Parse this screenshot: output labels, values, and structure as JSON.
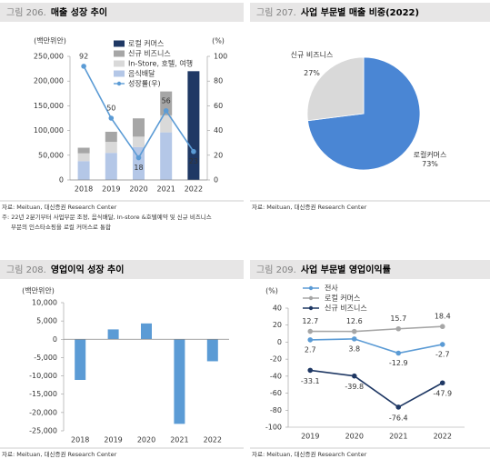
{
  "chart_data": [
    {
      "type": "bar",
      "figure": "그림 206.",
      "title": "매출 성장 추이",
      "y_label": "(백만위안)",
      "y2_label": "(%)",
      "categories": [
        "2018",
        "2019",
        "2020",
        "2021",
        "2022"
      ],
      "stacked": true,
      "series": [
        {
          "name": "로컬 커머스",
          "color": "#1f3864",
          "values": [
            null,
            null,
            null,
            null,
            220000
          ]
        },
        {
          "name": "신규 비즈니스",
          "color": "#a6a6a6",
          "values": [
            11300,
            20400,
            37000,
            48200,
            null
          ]
        },
        {
          "name": "In-Store, 호텔, 여행",
          "color": "#d9d9d9",
          "values": [
            15800,
            22300,
            21300,
            34500,
            null
          ]
        },
        {
          "name": "음식배달",
          "color": "#b4c7e7",
          "values": [
            38100,
            54800,
            66300,
            96300,
            null
          ]
        },
        {
          "name": "성장률(우)",
          "type": "line",
          "axis": "y2",
          "color": "#5b9bd5",
          "values": [
            92,
            50,
            18,
            56,
            23
          ]
        }
      ],
      "ylim": [
        0,
        250000
      ],
      "yticks": [
        0,
        {
          "value": 50000,
          "label": "50,000"
        },
        {
          "value": 100000,
          "label": "100,000"
        },
        {
          "value": 150000,
          "label": "150,000"
        },
        {
          "value": 200000,
          "label": "200,000"
        },
        {
          "value": 250000,
          "label": "250,000"
        }
      ],
      "y2lim": [
        0,
        100
      ],
      "y2ticks": [
        0,
        20,
        40,
        60,
        80,
        100
      ],
      "source": "자료: Meituan, 대신증권 Research Center",
      "note": [
        "주: 22년 2분기부터 사업부문 조정, 음식배달, In-store &호텔예약 및 신규 비즈니스",
        "부문의 인스타쇼핑을 로컬 커머스로 통합"
      ]
    },
    {
      "type": "pie",
      "figure": "그림 207.",
      "title": "사업 부문별 매출 비중(2022)",
      "categories": [
        "로컬커머스",
        "신규 비즈니스"
      ],
      "values": [
        73,
        27
      ],
      "value_labels": [
        "73%",
        "27%"
      ],
      "colors": [
        "#4a86d4",
        "#d9d9d9"
      ],
      "source": "자료: Meituan, 대신증권 Research Center"
    },
    {
      "type": "bar",
      "figure": "그림 208.",
      "title": "영업이익 성장 추이",
      "y_label": "(백만위안)",
      "categories": [
        "2018",
        "2019",
        "2020",
        "2021",
        "2022"
      ],
      "values": [
        -11100,
        2700,
        4330,
        -23100,
        -6000
      ],
      "color": "#5b9bd5",
      "ylim": [
        -25000,
        10000
      ],
      "yticks": [
        {
          "value": -25000,
          "label": "-25,000"
        },
        {
          "value": -20000,
          "label": "-20,000"
        },
        {
          "value": -15000,
          "label": "-15,000"
        },
        {
          "value": -10000,
          "label": "-10,000"
        },
        {
          "value": -5000,
          "label": "-5,000"
        },
        0,
        {
          "value": 5000,
          "label": "5,000"
        },
        {
          "value": 10000,
          "label": "10,000"
        }
      ],
      "source": "자료: Meituan, 대신증권 Research Center"
    },
    {
      "type": "line",
      "figure": "그림 209.",
      "title": "사업 부문별 영업이익률",
      "y_label": "(%)",
      "categories": [
        "2019",
        "2020",
        "2021",
        "2022"
      ],
      "series": [
        {
          "name": "전사",
          "color": "#5b9bd5",
          "values": [
            2.7,
            3.8,
            -12.9,
            -2.7
          ]
        },
        {
          "name": "로컬 커머스",
          "color": "#a6a6a6",
          "values": [
            12.7,
            12.6,
            15.7,
            18.4
          ]
        },
        {
          "name": "신규 비즈니스",
          "color": "#1f3864",
          "values": [
            -33.1,
            -39.8,
            -76.4,
            -47.9
          ]
        }
      ],
      "ylim": [
        -100,
        40
      ],
      "yticks": [
        -100,
        -80,
        -60,
        -40,
        -20,
        0,
        20,
        40
      ],
      "source": "자료: Meituan, 대신증권 Research Center"
    }
  ]
}
